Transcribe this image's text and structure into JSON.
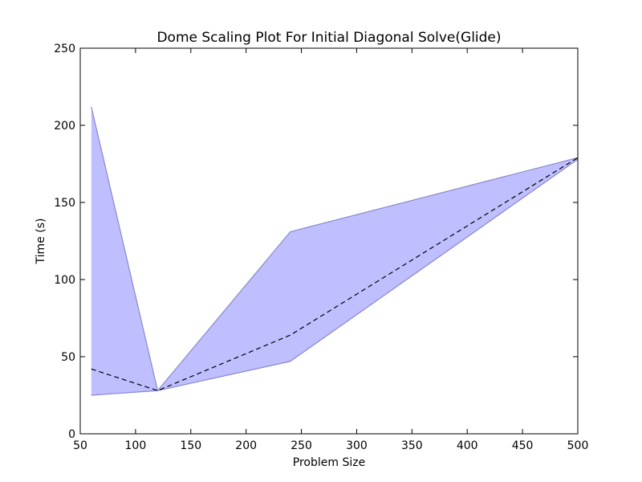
{
  "chart_data": {
    "type": "area",
    "title": "Dome  Scaling Plot For Initial Diagonal Solve(Glide)",
    "xlabel": "Problem Size",
    "ylabel": "Time (s)",
    "xlim": [
      50,
      500
    ],
    "ylim": [
      0,
      250
    ],
    "xticks": [
      "50",
      "100",
      "150",
      "200",
      "250",
      "300",
      "350",
      "400",
      "450",
      "500"
    ],
    "yticks": [
      "0",
      "50",
      "100",
      "150",
      "200",
      "250"
    ],
    "grid": false,
    "legend": "none",
    "x": [
      60,
      120,
      240,
      500
    ],
    "series": [
      {
        "role": "mean",
        "style": "dashed",
        "color": "#000000",
        "values": [
          42,
          28,
          64,
          179
        ]
      },
      {
        "role": "max",
        "color": "#8888cc",
        "values": [
          212,
          28,
          131,
          179
        ]
      },
      {
        "role": "min",
        "color": "#8888cc",
        "values": [
          25,
          28,
          47,
          178
        ]
      }
    ],
    "fill_color": "#bfbfff"
  }
}
